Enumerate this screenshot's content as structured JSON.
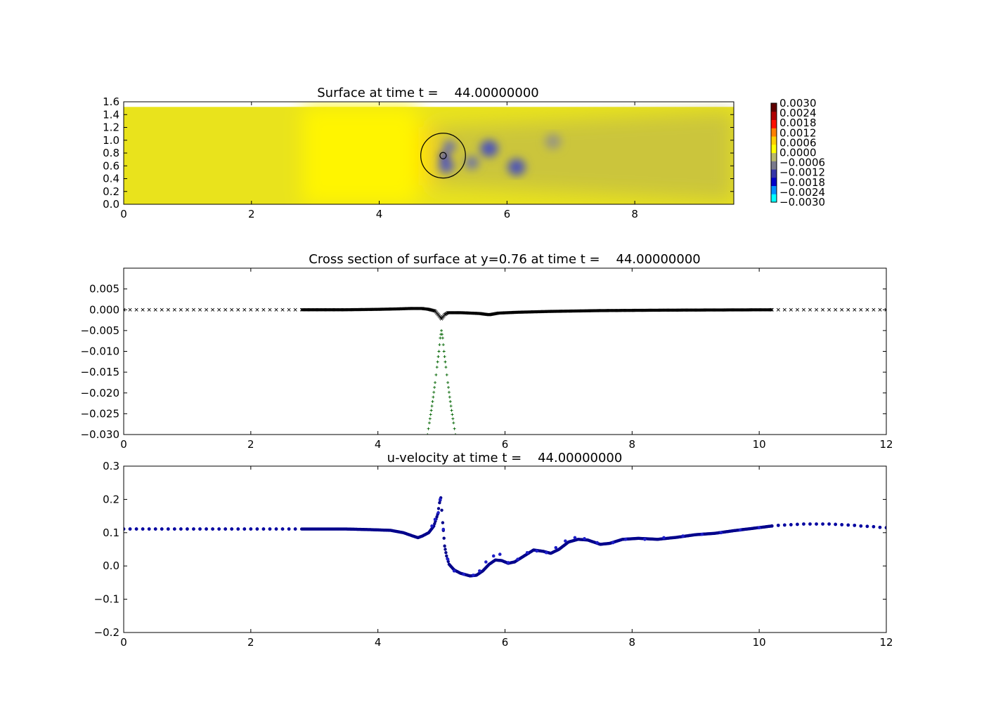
{
  "figure": {
    "background": "#ffffff"
  },
  "chart_data": [
    {
      "type": "heatmap",
      "title": "Surface at time t =    44.00000000",
      "xlim": [
        0,
        9.55
      ],
      "ylim": [
        0,
        1.6
      ],
      "domain_y_max": 1.52,
      "xticks": [
        "0",
        "2",
        "4",
        "6",
        "8"
      ],
      "yticks": [
        "0.0",
        "0.2",
        "0.4",
        "0.6",
        "0.8",
        "1.0",
        "1.2",
        "1.4",
        "1.6"
      ],
      "background_color": "#e9e31c",
      "features": [
        {
          "kind": "positive-blob",
          "x": 4.7,
          "y": 0.76,
          "rx": 0.55,
          "ry": 0.45,
          "color": "#ffdc00"
        },
        {
          "kind": "bright-band",
          "x0": 2.8,
          "x1": 4.6,
          "color": "#fff500"
        },
        {
          "kind": "wake",
          "x0": 4.85,
          "x1": 9.55,
          "color": "#bdb84a"
        },
        {
          "kind": "vortex",
          "x": 5.05,
          "y": 0.6,
          "r": 0.12,
          "color": "#5a5fb4"
        },
        {
          "kind": "vortex",
          "x": 5.1,
          "y": 0.9,
          "r": 0.1,
          "color": "#6e72a8"
        },
        {
          "kind": "vortex",
          "x": 5.45,
          "y": 0.65,
          "r": 0.11,
          "color": "#7378a0"
        },
        {
          "kind": "vortex",
          "x": 5.72,
          "y": 0.87,
          "r": 0.14,
          "color": "#4e55b8"
        },
        {
          "kind": "vortex",
          "x": 6.15,
          "y": 0.58,
          "r": 0.14,
          "color": "#5057b4"
        },
        {
          "kind": "vortex",
          "x": 6.72,
          "y": 0.98,
          "r": 0.13,
          "color": "#9c9a7c"
        },
        {
          "kind": "vortex",
          "x": 5.02,
          "y": 0.75,
          "r": 0.07,
          "color": "#1414c8"
        }
      ],
      "circles": [
        {
          "x": 5.0,
          "y": 0.76,
          "r": 0.35
        },
        {
          "x": 5.0,
          "y": 0.76,
          "r": 0.05
        }
      ],
      "colorbar": {
        "ticks": [
          "0.0030",
          "0.0024",
          "0.0018",
          "0.0012",
          "0.0006",
          "0.0000",
          "−0.0006",
          "−0.0012",
          "−0.0018",
          "−0.0024",
          "−0.0030"
        ],
        "colors": [
          "#00ffff",
          "#0090ff",
          "#0000c8",
          "#3535a8",
          "#7a7a8c",
          "#b8b86a",
          "#ffff00",
          "#ffd000",
          "#ff8000",
          "#ff1000",
          "#b00000",
          "#600000"
        ]
      }
    },
    {
      "type": "scatter",
      "title": "Cross section of surface at y=0.76 at time t =    44.00000000",
      "xlim": [
        0,
        12
      ],
      "ylim": [
        -0.03,
        0.01
      ],
      "xticks": [
        "0",
        "2",
        "4",
        "6",
        "8",
        "10",
        "12"
      ],
      "yticks": [
        "0.005",
        "0.000",
        "−0.005",
        "−0.010",
        "−0.015",
        "−0.020",
        "−0.025",
        "−0.030"
      ],
      "series": [
        {
          "marker": "x",
          "color": "#000000",
          "points": [
            [
              0,
              0
            ],
            [
              0.1,
              0
            ],
            [
              0.2,
              0
            ],
            [
              0.3,
              0
            ],
            [
              0.4,
              0
            ],
            [
              0.5,
              0
            ],
            [
              0.6,
              0
            ],
            [
              0.7,
              0
            ],
            [
              0.8,
              0
            ],
            [
              0.9,
              0
            ],
            [
              1.0,
              0
            ],
            [
              1.1,
              0
            ],
            [
              1.2,
              0
            ],
            [
              1.3,
              0
            ],
            [
              1.4,
              0
            ],
            [
              1.5,
              0
            ],
            [
              1.6,
              0
            ],
            [
              1.7,
              0
            ],
            [
              1.8,
              0
            ],
            [
              1.9,
              0
            ],
            [
              2.0,
              0
            ],
            [
              2.1,
              0
            ],
            [
              2.2,
              0
            ],
            [
              2.3,
              0
            ],
            [
              2.4,
              0
            ],
            [
              2.5,
              0
            ],
            [
              2.6,
              0
            ],
            [
              2.7,
              0
            ],
            [
              10.2,
              0
            ],
            [
              10.3,
              0
            ],
            [
              10.4,
              0
            ],
            [
              10.5,
              0
            ],
            [
              10.6,
              0
            ],
            [
              10.7,
              0
            ],
            [
              10.8,
              0
            ],
            [
              10.9,
              0
            ],
            [
              11.0,
              0
            ],
            [
              11.1,
              0
            ],
            [
              11.2,
              0
            ],
            [
              11.3,
              0
            ],
            [
              11.4,
              0
            ],
            [
              11.5,
              0
            ],
            [
              11.6,
              0
            ],
            [
              11.7,
              0
            ],
            [
              11.8,
              0
            ],
            [
              11.9,
              0
            ],
            [
              12.0,
              0
            ]
          ]
        },
        {
          "marker": "dense-line",
          "color": "#000000",
          "points": [
            [
              2.8,
              0
            ],
            [
              3.5,
              0.0
            ],
            [
              4.0,
              0.0001
            ],
            [
              4.3,
              0.0002
            ],
            [
              4.5,
              0.0003
            ],
            [
              4.7,
              0.0003
            ],
            [
              4.8,
              0.0001
            ],
            [
              4.9,
              -0.0003
            ],
            [
              4.95,
              -0.0012
            ],
            [
              5.0,
              -0.0022
            ],
            [
              5.05,
              -0.0012
            ],
            [
              5.1,
              -0.0007
            ],
            [
              5.3,
              -0.0007
            ],
            [
              5.6,
              -0.0009
            ],
            [
              5.75,
              -0.0012
            ],
            [
              5.9,
              -0.0008
            ],
            [
              6.2,
              -0.0006
            ],
            [
              6.7,
              -0.0004
            ],
            [
              7.5,
              -0.0002
            ],
            [
              8.5,
              -0.0001
            ],
            [
              10.2,
              0
            ]
          ]
        },
        {
          "marker": "+",
          "color": "#006400",
          "points": [
            [
              4.78,
              -0.03
            ],
            [
              4.81,
              -0.0272
            ],
            [
              4.84,
              -0.0242
            ],
            [
              4.87,
              -0.021
            ],
            [
              4.9,
              -0.0175
            ],
            [
              4.93,
              -0.0138
            ],
            [
              4.96,
              -0.01
            ],
            [
              4.98,
              -0.0068
            ],
            [
              5.0,
              -0.005
            ],
            [
              5.02,
              -0.0068
            ],
            [
              5.04,
              -0.01
            ],
            [
              5.07,
              -0.0138
            ],
            [
              5.1,
              -0.0175
            ],
            [
              5.13,
              -0.021
            ],
            [
              5.16,
              -0.0242
            ],
            [
              5.19,
              -0.0272
            ],
            [
              5.22,
              -0.03
            ]
          ]
        }
      ]
    },
    {
      "type": "scatter",
      "title": "u-velocity at time t =    44.00000000",
      "xlim": [
        0,
        12
      ],
      "ylim": [
        -0.2,
        0.3
      ],
      "xticks": [
        "0",
        "2",
        "4",
        "6",
        "8",
        "10",
        "12"
      ],
      "yticks": [
        "0.3",
        "0.2",
        "0.1",
        "0.0",
        "−0.1",
        "−0.2"
      ],
      "series": [
        {
          "marker": "o",
          "color": "#0000a0",
          "points": [
            [
              0,
              0.111
            ],
            [
              0.1,
              0.111
            ],
            [
              0.2,
              0.111
            ],
            [
              0.3,
              0.111
            ],
            [
              0.4,
              0.111
            ],
            [
              0.5,
              0.111
            ],
            [
              0.6,
              0.111
            ],
            [
              0.7,
              0.111
            ],
            [
              0.8,
              0.111
            ],
            [
              0.9,
              0.111
            ],
            [
              1.0,
              0.111
            ],
            [
              1.1,
              0.111
            ],
            [
              1.2,
              0.111
            ],
            [
              1.3,
              0.111
            ],
            [
              1.4,
              0.111
            ],
            [
              1.5,
              0.111
            ],
            [
              1.6,
              0.111
            ],
            [
              1.7,
              0.111
            ],
            [
              1.8,
              0.111
            ],
            [
              1.9,
              0.111
            ],
            [
              2.0,
              0.111
            ],
            [
              2.1,
              0.111
            ],
            [
              2.2,
              0.111
            ],
            [
              2.3,
              0.111
            ],
            [
              2.4,
              0.111
            ],
            [
              2.5,
              0.111
            ],
            [
              2.6,
              0.111
            ],
            [
              2.7,
              0.111
            ],
            [
              10.2,
              0.12
            ],
            [
              10.3,
              0.122
            ],
            [
              10.4,
              0.123
            ],
            [
              10.5,
              0.124
            ],
            [
              10.6,
              0.125
            ],
            [
              10.7,
              0.126
            ],
            [
              10.8,
              0.126
            ],
            [
              10.9,
              0.126
            ],
            [
              11.0,
              0.126
            ],
            [
              11.1,
              0.126
            ],
            [
              11.2,
              0.125
            ],
            [
              11.3,
              0.124
            ],
            [
              11.4,
              0.123
            ],
            [
              11.5,
              0.122
            ],
            [
              11.6,
              0.12
            ],
            [
              11.7,
              0.119
            ],
            [
              11.8,
              0.118
            ],
            [
              11.9,
              0.116
            ],
            [
              12.0,
              0.115
            ]
          ]
        },
        {
          "marker": "dense-line",
          "color": "#00008b",
          "points": [
            [
              2.8,
              0.111
            ],
            [
              3.5,
              0.111
            ],
            [
              3.9,
              0.109
            ],
            [
              4.2,
              0.107
            ],
            [
              4.4,
              0.1
            ],
            [
              4.55,
              0.09
            ],
            [
              4.63,
              0.085
            ],
            [
              4.7,
              0.09
            ],
            [
              4.8,
              0.1
            ],
            [
              4.88,
              0.12
            ],
            [
              4.94,
              0.155
            ],
            [
              4.97,
              0.19
            ],
            [
              4.99,
              0.205
            ],
            [
              5.02,
              0.13
            ],
            [
              5.05,
              0.06
            ],
            [
              5.08,
              0.03
            ],
            [
              5.12,
              0.005
            ],
            [
              5.2,
              -0.012
            ],
            [
              5.3,
              -0.022
            ],
            [
              5.45,
              -0.03
            ],
            [
              5.55,
              -0.028
            ],
            [
              5.65,
              -0.015
            ],
            [
              5.75,
              0.005
            ],
            [
              5.85,
              0.018
            ],
            [
              5.95,
              0.016
            ],
            [
              6.05,
              0.008
            ],
            [
              6.15,
              0.012
            ],
            [
              6.3,
              0.03
            ],
            [
              6.45,
              0.048
            ],
            [
              6.6,
              0.044
            ],
            [
              6.72,
              0.038
            ],
            [
              6.85,
              0.05
            ],
            [
              7.0,
              0.072
            ],
            [
              7.15,
              0.08
            ],
            [
              7.3,
              0.078
            ],
            [
              7.5,
              0.065
            ],
            [
              7.65,
              0.068
            ],
            [
              7.85,
              0.08
            ],
            [
              8.1,
              0.083
            ],
            [
              8.4,
              0.08
            ],
            [
              8.7,
              0.086
            ],
            [
              9.0,
              0.094
            ],
            [
              9.3,
              0.098
            ],
            [
              9.6,
              0.106
            ],
            [
              9.9,
              0.113
            ],
            [
              10.2,
              0.12
            ]
          ]
        },
        {
          "marker": "o-overlay",
          "color": "#1e1ec8",
          "points": [
            [
              4.85,
              0.12
            ],
            [
              4.9,
              0.14
            ],
            [
              4.95,
              0.16
            ],
            [
              4.98,
              0.2
            ],
            [
              5.03,
              0.11
            ],
            [
              5.1,
              0.02
            ],
            [
              5.2,
              -0.015
            ],
            [
              5.35,
              -0.025
            ],
            [
              5.5,
              -0.028
            ],
            [
              5.6,
              -0.015
            ],
            [
              5.7,
              0.012
            ],
            [
              5.82,
              0.03
            ],
            [
              5.92,
              0.035
            ],
            [
              6.05,
              0.01
            ],
            [
              6.2,
              0.02
            ],
            [
              6.35,
              0.04
            ],
            [
              6.5,
              0.045
            ],
            [
              6.65,
              0.04
            ],
            [
              6.8,
              0.055
            ],
            [
              6.95,
              0.075
            ],
            [
              7.1,
              0.085
            ],
            [
              7.25,
              0.082
            ],
            [
              7.45,
              0.07
            ],
            [
              7.7,
              0.07
            ],
            [
              7.9,
              0.08
            ],
            [
              8.2,
              0.08
            ],
            [
              8.5,
              0.085
            ],
            [
              8.8,
              0.09
            ],
            [
              9.1,
              0.095
            ],
            [
              9.4,
              0.1
            ],
            [
              9.7,
              0.108
            ],
            [
              10.0,
              0.115
            ]
          ]
        }
      ]
    }
  ]
}
